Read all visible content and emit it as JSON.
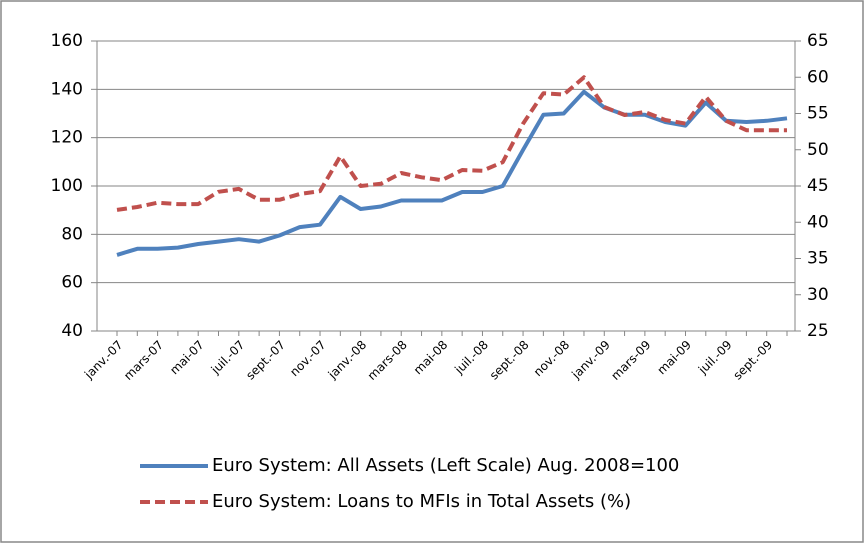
{
  "chart_data": {
    "type": "line",
    "categories": [
      "janv.-07",
      null,
      "mars-07",
      null,
      "mai-07",
      null,
      "juil.-07",
      null,
      "sept.-07",
      null,
      "nov.-07",
      null,
      "janv.-08",
      null,
      "mars-08",
      null,
      "mai-08",
      null,
      "juil.-08",
      null,
      "sept.-08",
      null,
      "nov.-08",
      null,
      "janv.-09",
      null,
      "mars-09",
      null,
      "mai-09",
      null,
      "juil.-09",
      null,
      "sept.-09",
      null
    ],
    "series": [
      {
        "name": "Euro System: All Assets (Left Scale) Aug. 2008=100",
        "color": "#4f81bd",
        "dashed": false,
        "values": [
          71.5,
          74,
          74,
          74.5,
          76,
          77,
          78,
          77,
          79.5,
          83,
          84,
          95.5,
          90.5,
          91.5,
          94,
          94,
          94,
          97.5,
          97.5,
          100,
          115,
          129.5,
          130,
          139,
          132.5,
          129.5,
          129.5,
          126.5,
          125,
          134.5,
          127,
          126.5,
          127,
          128
        ]
      },
      {
        "name": "Euro System: Loans to MFIs in Total Assets (%)",
        "color": "#c0504d",
        "dashed": true,
        "axis": "y2",
        "values": [
          41.7,
          42.1,
          42.7,
          42.5,
          42.5,
          44.2,
          44.6,
          43.1,
          43.1,
          43.9,
          44.3,
          49.1,
          45,
          45.3,
          46.8,
          46.2,
          45.8,
          47.2,
          47.1,
          48.3,
          53.6,
          57.8,
          57.6,
          60,
          55.9,
          54.8,
          55.2,
          54.1,
          53.6,
          57.3,
          54,
          52.7,
          52.7,
          52.7
        ]
      }
    ],
    "ylim": [
      40,
      160
    ],
    "yticks": [
      40,
      60,
      80,
      100,
      120,
      140,
      160
    ],
    "y2lim": [
      25,
      65
    ],
    "y2ticks": [
      25,
      30,
      35,
      40,
      45,
      50,
      55,
      60,
      65
    ],
    "grid": true,
    "legend": "bottom"
  }
}
